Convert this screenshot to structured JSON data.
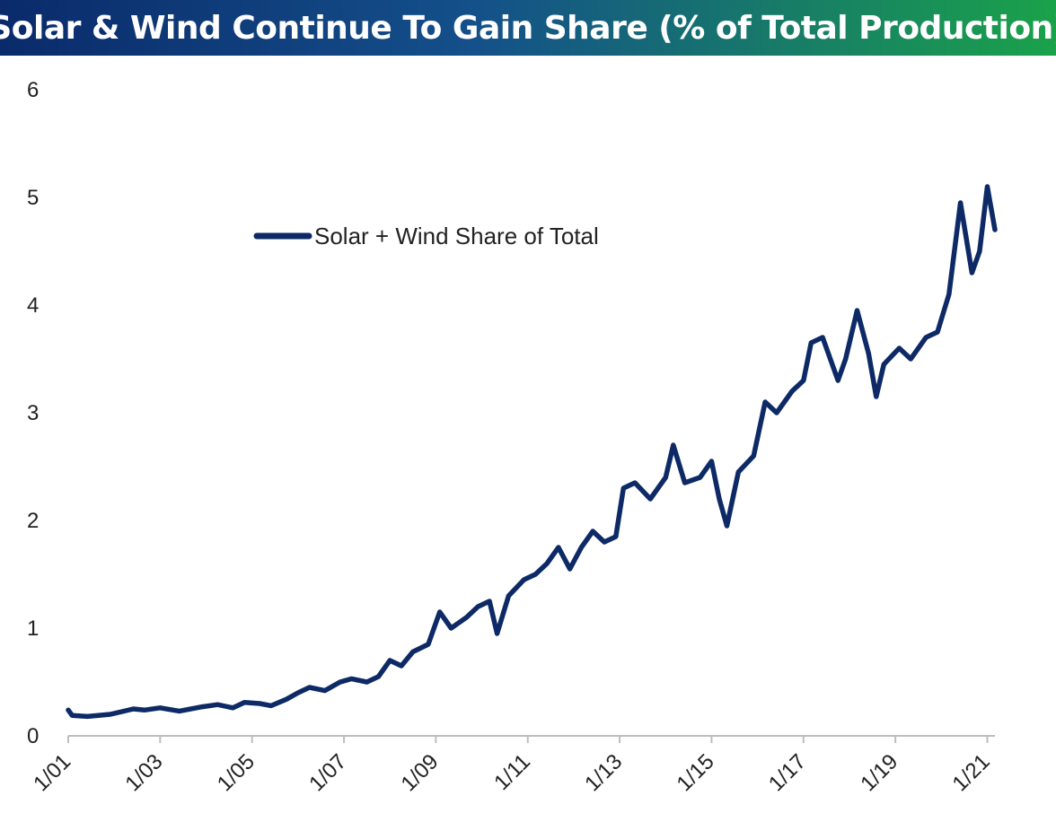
{
  "chart_data": {
    "type": "line",
    "title": "Solar & Wind Continue To Gain Share (% of Total Production)",
    "xlabel": "",
    "ylabel": "",
    "ylim": [
      0,
      6
    ],
    "y_ticks": [
      0,
      1,
      2,
      3,
      4,
      5,
      6
    ],
    "x_ticks": [
      "1/01",
      "1/03",
      "1/05",
      "1/07",
      "1/09",
      "1/11",
      "1/13",
      "1/15",
      "1/17",
      "1/19",
      "1/21"
    ],
    "x_range": [
      "2001-01",
      "2021-03"
    ],
    "grid": false,
    "legend_position": "upper-left",
    "colors": {
      "title_gradient_start": "#0a2a6b",
      "title_gradient_end": "#1aa24a",
      "line": "#0d2a66",
      "axis": "#bdbdbd"
    },
    "series": [
      {
        "name": "Solar + Wind Share of Total",
        "points": [
          [
            "2001-01",
            0.24
          ],
          [
            "2001-02",
            0.19
          ],
          [
            "2001-06",
            0.18
          ],
          [
            "2001-12",
            0.2
          ],
          [
            "2002-06",
            0.25
          ],
          [
            "2002-09",
            0.24
          ],
          [
            "2003-01",
            0.26
          ],
          [
            "2003-06",
            0.23
          ],
          [
            "2003-12",
            0.27
          ],
          [
            "2004-04",
            0.29
          ],
          [
            "2004-08",
            0.26
          ],
          [
            "2004-11",
            0.31
          ],
          [
            "2005-03",
            0.3
          ],
          [
            "2005-06",
            0.28
          ],
          [
            "2005-10",
            0.34
          ],
          [
            "2006-01",
            0.4
          ],
          [
            "2006-04",
            0.45
          ],
          [
            "2006-08",
            0.42
          ],
          [
            "2006-12",
            0.5
          ],
          [
            "2007-03",
            0.53
          ],
          [
            "2007-07",
            0.5
          ],
          [
            "2007-10",
            0.55
          ],
          [
            "2008-01",
            0.7
          ],
          [
            "2008-04",
            0.65
          ],
          [
            "2008-07",
            0.78
          ],
          [
            "2008-11",
            0.85
          ],
          [
            "2009-02",
            1.15
          ],
          [
            "2009-05",
            1.0
          ],
          [
            "2009-09",
            1.1
          ],
          [
            "2009-12",
            1.2
          ],
          [
            "2010-03",
            1.25
          ],
          [
            "2010-05",
            0.95
          ],
          [
            "2010-08",
            1.3
          ],
          [
            "2010-12",
            1.45
          ],
          [
            "2011-03",
            1.5
          ],
          [
            "2011-06",
            1.6
          ],
          [
            "2011-09",
            1.75
          ],
          [
            "2011-12",
            1.55
          ],
          [
            "2012-03",
            1.75
          ],
          [
            "2012-06",
            1.9
          ],
          [
            "2012-09",
            1.8
          ],
          [
            "2012-12",
            1.85
          ],
          [
            "2013-02",
            2.3
          ],
          [
            "2013-05",
            2.35
          ],
          [
            "2013-09",
            2.2
          ],
          [
            "2014-01",
            2.4
          ],
          [
            "2014-03",
            2.7
          ],
          [
            "2014-06",
            2.35
          ],
          [
            "2014-10",
            2.4
          ],
          [
            "2015-01",
            2.55
          ],
          [
            "2015-03",
            2.2
          ],
          [
            "2015-05",
            1.95
          ],
          [
            "2015-08",
            2.45
          ],
          [
            "2015-12",
            2.6
          ],
          [
            "2016-03",
            3.1
          ],
          [
            "2016-06",
            3.0
          ],
          [
            "2016-10",
            3.2
          ],
          [
            "2017-01",
            3.3
          ],
          [
            "2017-03",
            3.65
          ],
          [
            "2017-06",
            3.7
          ],
          [
            "2017-10",
            3.3
          ],
          [
            "2017-12",
            3.5
          ],
          [
            "2018-03",
            3.95
          ],
          [
            "2018-06",
            3.55
          ],
          [
            "2018-08",
            3.15
          ],
          [
            "2018-10",
            3.45
          ],
          [
            "2019-02",
            3.6
          ],
          [
            "2019-05",
            3.5
          ],
          [
            "2019-09",
            3.7
          ],
          [
            "2019-12",
            3.75
          ],
          [
            "2020-03",
            4.1
          ],
          [
            "2020-06",
            4.95
          ],
          [
            "2020-09",
            4.3
          ],
          [
            "2020-11",
            4.5
          ],
          [
            "2021-01",
            5.1
          ],
          [
            "2021-03",
            4.7
          ]
        ]
      }
    ]
  }
}
